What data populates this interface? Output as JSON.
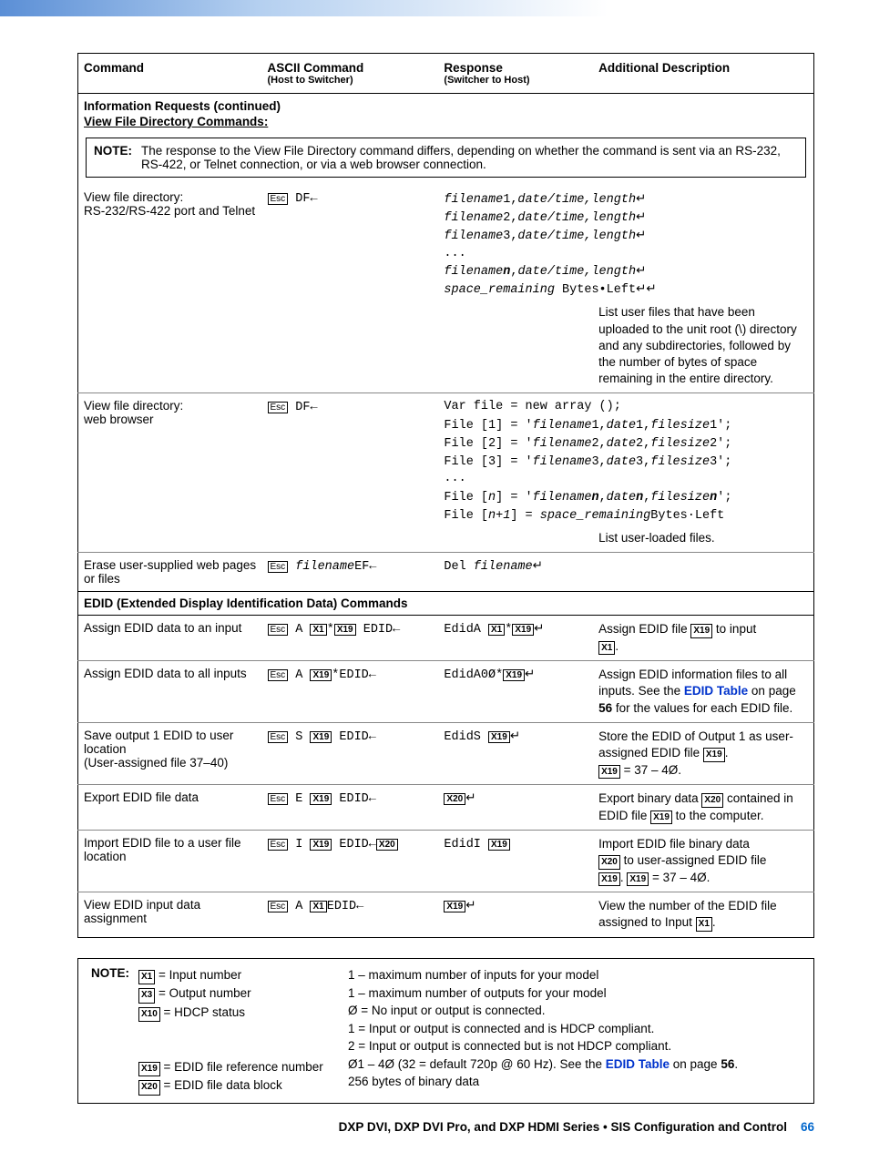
{
  "headers": {
    "c1": "Command",
    "c2": "ASCII Command",
    "c2s": "(Host to Switcher)",
    "c3": "Response",
    "c3s": "(Switcher to Host)",
    "c4": "Additional Description"
  },
  "sec1": {
    "title": "Information Requests (continued)",
    "sub": "View File Directory Commands:"
  },
  "note1": {
    "label": "NOTE:",
    "text": "The response to the View File Directory command differs, depending on whether the command is sent via an RS-232, RS-422, or Telnet connection, or via a web browser connection."
  },
  "r1": {
    "cmd": "View file directory:\nRS-232/RS-422 port and Telnet",
    "asc_df": " DF",
    "resp_l1a": "filename",
    "resp_l1b": "1,",
    "resp_l1c": "date/time,length",
    "resp_l2a": "filename",
    "resp_l2b": "2,",
    "resp_l2c": "date/time,length",
    "resp_l3a": "filename",
    "resp_l3b": "3,",
    "resp_l3c": "date/time,length",
    "dots": "...",
    "resp_lna": "filename",
    "resp_lnb": "n",
    "resp_lnc": ",",
    "resp_lnd": "date/time,length",
    "resp_sp1": "space_remaining",
    "resp_sp2": " Bytes•Left",
    "desc": "List user files that have been uploaded to the unit root (\\) directory and any subdirectories, followed by the number of bytes of space remaining in the entire directory."
  },
  "r2": {
    "cmd": "View file directory:\nweb browser",
    "asc_df": " DF",
    "v1": "Var file = new array ();",
    "v2a": "File [1] = '",
    "v2b": "filename",
    "v2c": "1,",
    "v2d": "date",
    "v2e": "1,",
    "v2f": "filesize",
    "v2g": "1';",
    "v3a": "File [2] = '",
    "v3b": "filename",
    "v3c": "2,",
    "v3d": "date",
    "v3e": "2,",
    "v3f": "filesize",
    "v3g": "2';",
    "v4a": "File [3] = '",
    "v4b": "filename",
    "v4c": "3,",
    "v4d": "date",
    "v4e": "3,",
    "v4f": "filesize",
    "v4g": "3';",
    "dots": "...",
    "vna": "File [",
    "vnb": "n",
    "vnc": "] = '",
    "vnd": "filename",
    "vne": "n",
    "vnf": ",",
    "vng": "date",
    "vnh": "n",
    "vni": ",",
    "vnj": "filesize",
    "vnk": "n",
    "vnl": "';",
    "vn1a": "File [",
    "vn1b": "n+1",
    "vn1c": "] = ",
    "vn1d": "space_remaining",
    "vn1e": "Bytes·Left",
    "desc": "List user-loaded files."
  },
  "r3": {
    "cmd": "Erase user-supplied web pages or files",
    "asc1": "filename",
    "asc2": "EF",
    "resp1": "Del ",
    "resp2": "filename"
  },
  "sec2": "EDID (Extended Display Identification Data) Commands",
  "r4": {
    "cmd": "Assign EDID data to an input",
    "asc_a": " A ",
    "asc_star": "*",
    "asc_edid": " EDID",
    "resp": "EdidA ",
    "desc1": "Assign EDID file ",
    "desc2": " to input",
    "desc3": "."
  },
  "r5": {
    "cmd": "Assign EDID data to all inputs",
    "asc_a": " A ",
    "asc_star": "*EDID",
    "resp": "EdidA0Ø*",
    "desc1": "Assign EDID information files to all inputs. See the ",
    "desc_link": "EDID Table",
    "desc2": " on page ",
    "desc_pg": "56",
    "desc3": " for the values for each EDID file."
  },
  "r6": {
    "cmd1": "Save output 1 EDID to user location",
    "cmd2": "(User-assigned file 37–40)",
    "asc_s": " S ",
    "asc_edid": " EDID",
    "resp": "EdidS ",
    "desc1": "Store the EDID of Output 1 as user-assigned EDID file ",
    "desc2": ".",
    "desc3": " = 37 – 4Ø."
  },
  "r7": {
    "cmd": "Export EDID file data",
    "asc_e": " E ",
    "asc_edid": " EDID",
    "desc1": "Export binary data ",
    "desc2": " contained in EDID file ",
    "desc3": " to the computer."
  },
  "r8": {
    "cmd": "Import EDID file to a user file location",
    "asc_i": " I ",
    "asc_edid": " EDID",
    "resp": "EdidI ",
    "desc1": "Import EDID file binary data",
    "desc2": " to user-assigned EDID file",
    "desc3": ". ",
    "desc4": " = 37 – 4Ø."
  },
  "r9": {
    "cmd": "View EDID input data assignment",
    "asc_a": " A ",
    "asc_edid": "EDID",
    "desc1": "View the number of the EDID file assigned to Input ",
    "desc2": "."
  },
  "legend": {
    "label": "NOTE:",
    "l1": " = Input number",
    "l2": " = Output number",
    "l3": " = HDCP status",
    "l4": " = EDID file reference number",
    "l5": " = EDID file data block",
    "r1": "1 – maximum number of inputs for your model",
    "r2": "1 – maximum number of outputs for your model",
    "r3": "Ø = No input or output is connected.",
    "r4": "1 = Input or output is connected and is HDCP compliant.",
    "r5": "2 = Input or output is connected but is not HDCP compliant.",
    "r6a": "Ø1 – 4Ø (32 = default 720p @ 60 Hz). See the ",
    "r6b": "EDID Table",
    "r6c": " on page ",
    "r6d": "56",
    "r6e": ".",
    "r7": "256 bytes of binary data"
  },
  "footer": {
    "t1": "DXP DVI, DXP DVI Pro, and DXP HDMI Series • SIS Configuration and Control",
    "page": "66"
  },
  "x": {
    "esc": "Esc",
    "x1": "X1",
    "x3": "X3",
    "x10": "X10",
    "x19": "X19",
    "x20": "X20"
  }
}
